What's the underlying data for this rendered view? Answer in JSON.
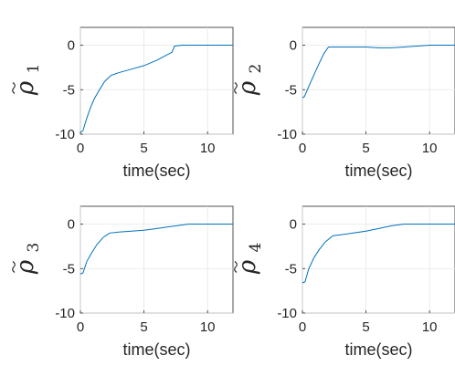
{
  "chart_data": [
    {
      "type": "line",
      "ylabel_symbol": "ρ",
      "ylabel_subscript": "1",
      "xlabel": "time(sec)",
      "xlim": [
        0,
        12
      ],
      "ylim": [
        -10,
        2
      ],
      "xticks": [
        "0",
        "5",
        "10"
      ],
      "yticks": [
        "0",
        "-5",
        "-10"
      ],
      "grid": true,
      "x": [
        0,
        0.2,
        0.5,
        0.8,
        1.1,
        1.5,
        1.9,
        2.4,
        3,
        4,
        5,
        6,
        6.8,
        7.2,
        7.4,
        8,
        9,
        10,
        12
      ],
      "y": [
        -9.8,
        -9.6,
        -8.2,
        -7,
        -6,
        -5,
        -4.1,
        -3.4,
        -3.1,
        -2.7,
        -2.3,
        -1.7,
        -1.1,
        -0.8,
        -0.1,
        0,
        0,
        0,
        0
      ]
    },
    {
      "type": "line",
      "ylabel_symbol": "ρ",
      "ylabel_subscript": "2",
      "xlabel": "time(sec)",
      "xlim": [
        0,
        12
      ],
      "ylim": [
        -10,
        2
      ],
      "xticks": [
        "0",
        "5",
        "10"
      ],
      "yticks": [
        "0",
        "-5",
        "-10"
      ],
      "grid": true,
      "x": [
        0,
        0.15,
        0.6,
        1.2,
        1.7,
        2.05,
        2.3,
        3,
        4,
        5,
        6,
        7,
        8,
        9,
        10,
        12
      ],
      "y": [
        -5.9,
        -5.8,
        -4.3,
        -2.4,
        -0.9,
        -0.2,
        -0.2,
        -0.2,
        -0.2,
        -0.2,
        -0.3,
        -0.3,
        -0.2,
        -0.1,
        0,
        0
      ]
    },
    {
      "type": "line",
      "ylabel_symbol": "ρ",
      "ylabel_subscript": "3",
      "xlabel": "time(sec)",
      "xlim": [
        0,
        12
      ],
      "ylim": [
        -10,
        2
      ],
      "xticks": [
        "0",
        "5",
        "10"
      ],
      "yticks": [
        "0",
        "-5",
        "-10"
      ],
      "grid": true,
      "x": [
        0,
        0.2,
        0.5,
        0.9,
        1.3,
        1.8,
        2.3,
        3,
        4,
        5,
        6,
        7,
        8,
        8.5,
        10,
        12
      ],
      "y": [
        -5.6,
        -5.5,
        -4.2,
        -3.2,
        -2.3,
        -1.5,
        -1,
        -0.9,
        -0.8,
        -0.7,
        -0.5,
        -0.3,
        -0.1,
        0,
        0,
        0
      ]
    },
    {
      "type": "line",
      "ylabel_symbol": "ρ",
      "ylabel_subscript": "4",
      "xlabel": "time(sec)",
      "xlim": [
        0,
        12
      ],
      "ylim": [
        -10,
        2
      ],
      "xticks": [
        "0",
        "5",
        "10"
      ],
      "yticks": [
        "0",
        "-5",
        "-10"
      ],
      "grid": true,
      "x": [
        0,
        0.2,
        0.5,
        0.9,
        1.3,
        1.8,
        2.4,
        3,
        4,
        5,
        6,
        7,
        8,
        8.5,
        10,
        12
      ],
      "y": [
        -6.6,
        -6.5,
        -5,
        -3.8,
        -2.9,
        -2,
        -1.3,
        -1.2,
        -1,
        -0.8,
        -0.5,
        -0.2,
        0,
        0,
        0,
        0
      ]
    }
  ]
}
